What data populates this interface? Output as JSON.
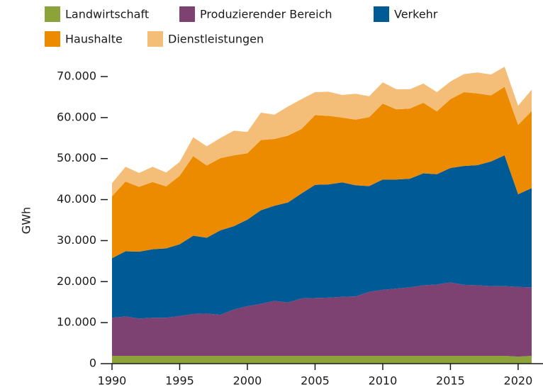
{
  "chart_data": {
    "type": "stacked_area",
    "y_label": "GWh",
    "x": [
      1990,
      1991,
      1992,
      1993,
      1994,
      1995,
      1996,
      1997,
      1998,
      1999,
      2000,
      2001,
      2002,
      2003,
      2004,
      2005,
      2006,
      2007,
      2008,
      2009,
      2010,
      2011,
      2012,
      2013,
      2014,
      2015,
      2016,
      2017,
      2018,
      2019,
      2020,
      2021
    ],
    "xlim": [
      1990,
      2021
    ],
    "xticks": [
      1990,
      1995,
      2000,
      2005,
      2010,
      2015,
      2020
    ],
    "ylim": [
      0,
      70000
    ],
    "yticks": [
      0,
      {
        "value": 10000,
        "label": "10.000"
      },
      {
        "value": 20000,
        "label": "20.000"
      },
      {
        "value": 30000,
        "label": "30.000"
      },
      {
        "value": 40000,
        "label": "40.000"
      },
      {
        "value": 50000,
        "label": "50.000"
      },
      {
        "value": 60000,
        "label": "60.000"
      },
      {
        "value": 70000,
        "label": "70.000"
      }
    ],
    "series": [
      {
        "name": "Landwirtschaft",
        "color": "#8ca33a",
        "values": [
          1900,
          1900,
          1900,
          1900,
          1900,
          1900,
          1900,
          1900,
          1900,
          1900,
          1900,
          1900,
          1900,
          1900,
          1900,
          1900,
          1900,
          1900,
          1900,
          1900,
          1900,
          1900,
          1900,
          1900,
          1900,
          1900,
          1900,
          1900,
          1900,
          1900,
          1700,
          1900
        ]
      },
      {
        "name": "Produzierender Bereich",
        "color": "#7d4271",
        "values": [
          9300,
          9600,
          9100,
          9300,
          9300,
          9700,
          10200,
          10300,
          10000,
          11300,
          12100,
          12700,
          13400,
          13000,
          14000,
          14100,
          14200,
          14400,
          14500,
          15600,
          16100,
          16400,
          16700,
          17200,
          17400,
          17900,
          17300,
          17200,
          17000,
          17000,
          17000,
          16700
        ]
      },
      {
        "name": "Verkehr",
        "color": "#005a96",
        "values": [
          14500,
          15900,
          16300,
          16700,
          16900,
          17500,
          19100,
          18500,
          20600,
          20300,
          21100,
          22800,
          23200,
          24400,
          25600,
          27600,
          27600,
          27900,
          27100,
          25800,
          26900,
          26600,
          26500,
          27300,
          26900,
          27900,
          29000,
          29300,
          30400,
          31900,
          22600,
          24200
        ]
      },
      {
        "name": "Haushalte",
        "color": "#ec8b00",
        "values": [
          15100,
          17000,
          15800,
          16400,
          15100,
          16700,
          19400,
          17600,
          17600,
          17300,
          16200,
          17100,
          16300,
          16300,
          15700,
          17000,
          16700,
          15800,
          16000,
          16800,
          18500,
          17100,
          17100,
          17200,
          15300,
          16800,
          18000,
          17500,
          16100,
          16700,
          16900,
          18800
        ]
      },
      {
        "name": "Dienstleistungen",
        "color": "#f5be78",
        "values": [
          3200,
          3600,
          3400,
          3700,
          3400,
          3400,
          4600,
          4700,
          4900,
          6000,
          5200,
          6700,
          5900,
          7100,
          7300,
          5600,
          5900,
          5500,
          6300,
          5100,
          5200,
          4900,
          4700,
          4700,
          4700,
          4300,
          4400,
          5100,
          5100,
          4900,
          4700,
          5200
        ]
      }
    ]
  }
}
